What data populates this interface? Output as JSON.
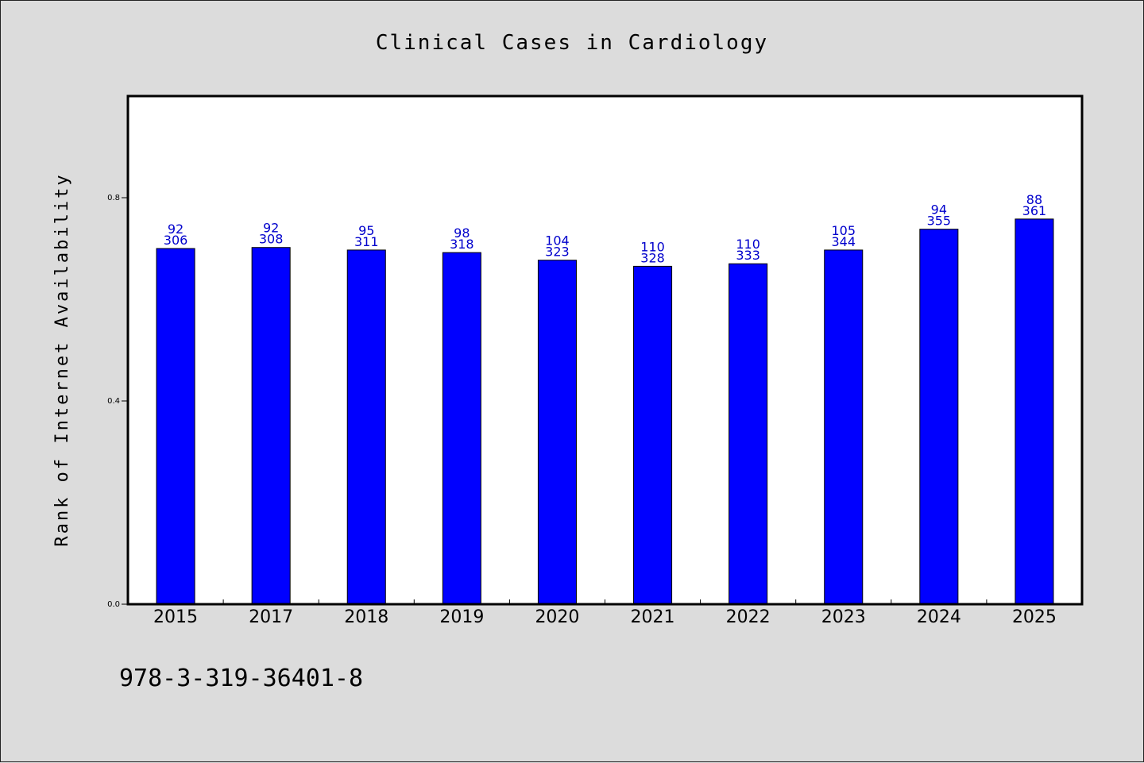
{
  "chart_data": {
    "type": "bar",
    "title": "Clinical Cases in Cardiology",
    "xlabel": "",
    "ylabel": "Rank of Internet Availability",
    "categories": [
      "2015",
      "2017",
      "2018",
      "2019",
      "2020",
      "2021",
      "2022",
      "2023",
      "2024",
      "2025"
    ],
    "values": [
      0.7,
      0.702,
      0.697,
      0.692,
      0.677,
      0.665,
      0.67,
      0.697,
      0.738,
      0.758
    ],
    "data_labels_top": [
      "92",
      "92",
      "95",
      "98",
      "104",
      "110",
      "110",
      "105",
      "94",
      "88"
    ],
    "data_labels_bottom": [
      "306",
      "308",
      "311",
      "318",
      "323",
      "328",
      "333",
      "344",
      "355",
      "361"
    ],
    "yticks": [
      "0.0",
      "0.4",
      "0.8"
    ],
    "ytick_values": [
      0,
      0.4,
      0.8
    ],
    "ylim": [
      0,
      1.0
    ],
    "grid": false,
    "legend": "none",
    "bar_color": "#0000ff",
    "label_color": "#0000cc"
  },
  "footer": {
    "isbn": "978-3-319-36401-8"
  }
}
